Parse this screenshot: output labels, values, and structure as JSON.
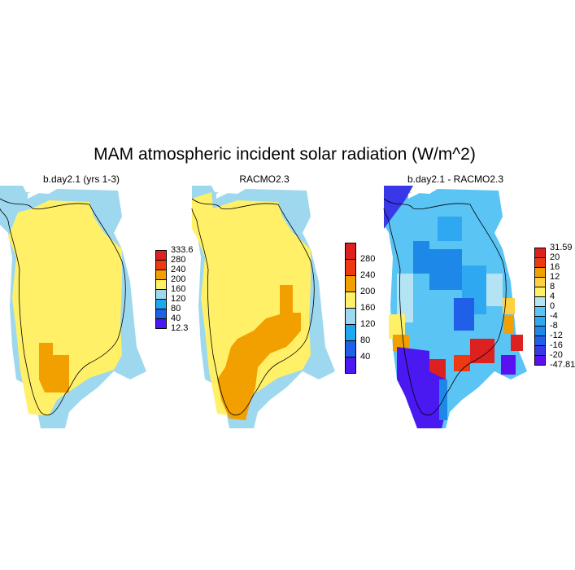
{
  "title": "MAM atmospheric incident solar radiation (W/m^2)",
  "panels": [
    {
      "title": "b.day2.1 (yrs 1-3)",
      "colorbar": {
        "labels": [
          "333.6",
          "280",
          "240",
          "200",
          "160",
          "120",
          "80",
          "40",
          "12.3"
        ],
        "colors": [
          "#dd2020",
          "#ee3a10",
          "#f2a000",
          "#fff068",
          "#9ed8ee",
          "#1ea8f0",
          "#2060e8",
          "#4a18f0"
        ]
      }
    },
    {
      "title": "RACMO2.3",
      "colorbar": {
        "labels": [
          "280",
          "240",
          "200",
          "160",
          "120",
          "80",
          "40"
        ],
        "colors": [
          "#dd2020",
          "#ee3a10",
          "#f2a000",
          "#fff068",
          "#9ed8ee",
          "#1ea8f0",
          "#2060e8",
          "#4a18f0"
        ]
      }
    },
    {
      "title": "b.day2.1 - RACMO2.3",
      "colorbar": {
        "labels": [
          "31.59",
          "20",
          "16",
          "12",
          "8",
          "4",
          "0",
          "-4",
          "-8",
          "-12",
          "-16",
          "-20",
          "-47.81"
        ],
        "colors": [
          "#dd2020",
          "#ee3a10",
          "#f2a000",
          "#ffd040",
          "#fff068",
          "#b4e4f4",
          "#5ac4f4",
          "#2ea8f0",
          "#1e88e8",
          "#2060e8",
          "#3838e8",
          "#5a10f0"
        ]
      }
    }
  ]
}
